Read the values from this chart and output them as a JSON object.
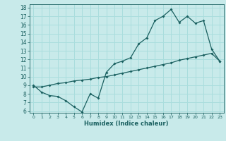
{
  "xlabel": "Humidex (Indice chaleur)",
  "xlim": [
    -0.5,
    23.5
  ],
  "ylim": [
    5.8,
    18.4
  ],
  "xticks": [
    0,
    1,
    2,
    3,
    4,
    5,
    6,
    7,
    8,
    9,
    10,
    11,
    12,
    13,
    14,
    15,
    16,
    17,
    18,
    19,
    20,
    21,
    22,
    23
  ],
  "yticks": [
    6,
    7,
    8,
    9,
    10,
    11,
    12,
    13,
    14,
    15,
    16,
    17,
    18
  ],
  "bg_color": "#c8eaea",
  "line_color": "#1a6060",
  "grid_color": "#aadddd",
  "line1_x": [
    0,
    1,
    2,
    3,
    4,
    5,
    6,
    7,
    8,
    9,
    10,
    11,
    12,
    13,
    14,
    15,
    16,
    17,
    18,
    19,
    20,
    21,
    22,
    23
  ],
  "line1_y": [
    9.0,
    8.2,
    7.8,
    7.7,
    7.2,
    6.5,
    5.9,
    8.0,
    7.5,
    10.5,
    11.5,
    11.8,
    12.2,
    13.8,
    14.5,
    16.5,
    17.0,
    17.8,
    16.3,
    17.0,
    16.2,
    16.5,
    13.2,
    11.8
  ],
  "line2_x": [
    0,
    1,
    2,
    3,
    4,
    5,
    6,
    7,
    8,
    9,
    10,
    11,
    12,
    13,
    14,
    15,
    16,
    17,
    18,
    19,
    20,
    21,
    22,
    23
  ],
  "line2_y": [
    8.8,
    8.8,
    9.0,
    9.2,
    9.3,
    9.5,
    9.6,
    9.7,
    9.9,
    10.0,
    10.2,
    10.4,
    10.6,
    10.8,
    11.0,
    11.2,
    11.4,
    11.6,
    11.9,
    12.1,
    12.3,
    12.5,
    12.7,
    11.8
  ]
}
